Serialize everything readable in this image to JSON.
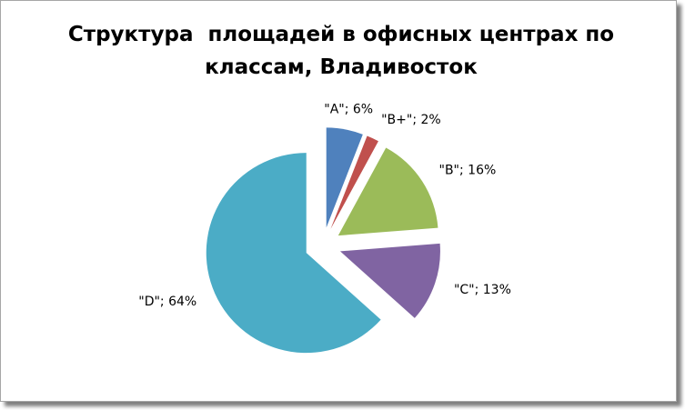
{
  "chart_data": {
    "type": "pie",
    "title": "Структура  площадей в офисных центрах по классам, Владивосток",
    "categories": [
      "\"A\"",
      "\"B+\"",
      "\"B\"",
      "\"C\"",
      "\"D\""
    ],
    "values": [
      6,
      2,
      16,
      13,
      64
    ],
    "value_labels": [
      "\"A\"; 6%",
      "\"B+\"; 2%",
      "\"B\"; 16%",
      "\"C\"; 13%",
      "\"D\"; 64%"
    ],
    "colors": [
      "#4f81bd",
      "#c0504d",
      "#9bbb59",
      "#8064a2",
      "#4bacc6"
    ],
    "exploded": true
  }
}
